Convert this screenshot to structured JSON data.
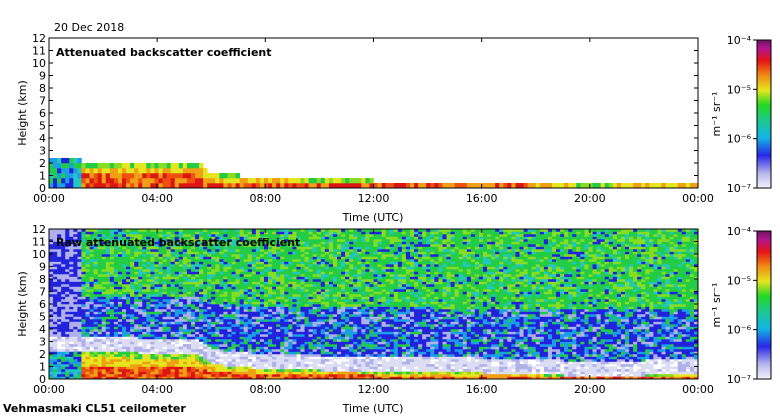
{
  "date_label": "20 Dec 2018",
  "footer_label": "Vehmasmaki CL51 ceilometer",
  "chart_data": [
    {
      "type": "heatmap",
      "title": "Attenuated backscatter coefficient",
      "xlabel": "Time (UTC)",
      "ylabel": "Height (km)",
      "x_ticks": [
        "00:00",
        "04:00",
        "08:00",
        "12:00",
        "16:00",
        "20:00",
        "00:00"
      ],
      "y_ticks": [
        "0",
        "1",
        "2",
        "3",
        "4",
        "5",
        "6",
        "7",
        "8",
        "9",
        "10",
        "11",
        "12"
      ],
      "xlim": [
        0,
        24
      ],
      "ylim": [
        0,
        12
      ],
      "colorbar": {
        "label": "m⁻¹ sr⁻¹",
        "ticks": [
          "10⁻⁴",
          "10⁻⁵",
          "10⁻⁶",
          "10⁻⁷"
        ],
        "range": [
          1e-07,
          0.0001
        ]
      },
      "profile": {
        "hours": [
          0,
          1.2,
          5.5,
          6,
          8,
          12,
          16,
          18,
          20,
          24
        ],
        "signal_top_km": [
          2.2,
          2.2,
          2.0,
          1.2,
          0.8,
          0.6,
          0.5,
          0.4,
          0.2,
          0.4
        ]
      }
    },
    {
      "type": "heatmap",
      "title": "Raw attenuated backscatter coefficient",
      "xlabel": "Time (UTC)",
      "ylabel": "Height (km)",
      "x_ticks": [
        "00:00",
        "04:00",
        "08:00",
        "12:00",
        "16:00",
        "20:00",
        "00:00"
      ],
      "y_ticks": [
        "0",
        "1",
        "2",
        "3",
        "4",
        "5",
        "6",
        "7",
        "8",
        "9",
        "10",
        "11",
        "12"
      ],
      "xlim": [
        0,
        24
      ],
      "ylim": [
        0,
        12
      ],
      "colorbar": {
        "label": "m⁻¹ sr⁻¹",
        "ticks": [
          "10⁻⁴",
          "10⁻⁵",
          "10⁻⁶",
          "10⁻⁷"
        ],
        "range": [
          1e-07,
          0.0001
        ]
      },
      "profile": {
        "hours": [
          0,
          1.2,
          5.5,
          6,
          8,
          12,
          16,
          18,
          20,
          24
        ],
        "signal_top_km": [
          2.2,
          2.2,
          2.0,
          1.2,
          0.8,
          0.6,
          0.5,
          0.4,
          0.2,
          0.4
        ]
      }
    }
  ]
}
